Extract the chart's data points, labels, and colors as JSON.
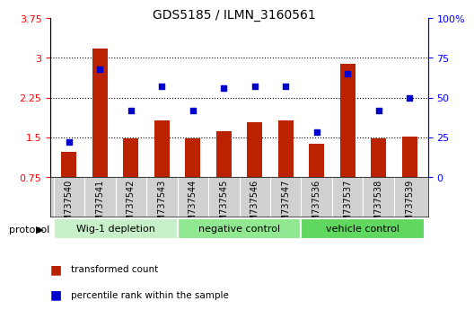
{
  "title": "GDS5185 / ILMN_3160561",
  "samples": [
    "GSM737540",
    "GSM737541",
    "GSM737542",
    "GSM737543",
    "GSM737544",
    "GSM737545",
    "GSM737546",
    "GSM737547",
    "GSM737536",
    "GSM737537",
    "GSM737538",
    "GSM737539"
  ],
  "bar_values": [
    1.22,
    3.18,
    1.48,
    1.82,
    1.48,
    1.61,
    1.78,
    1.82,
    1.38,
    2.88,
    1.48,
    1.52
  ],
  "dot_values": [
    22,
    68,
    42,
    57,
    42,
    56,
    57,
    57,
    28,
    65,
    42,
    50
  ],
  "bar_bottom": 0.75,
  "ylim_left": [
    0.75,
    3.75
  ],
  "ylim_right": [
    0,
    100
  ],
  "yticks_left": [
    0.75,
    1.5,
    2.25,
    3.0,
    3.75
  ],
  "yticks_right": [
    0,
    25,
    50,
    75,
    100
  ],
  "ytick_labels_left": [
    "0.75",
    "1.5",
    "2.25",
    "3",
    "3.75"
  ],
  "ytick_labels_right": [
    "0",
    "25",
    "50",
    "75",
    "100%"
  ],
  "groups": [
    {
      "label": "Wig-1 depletion",
      "start": 0,
      "end": 4,
      "color": "#c8f0c8"
    },
    {
      "label": "negative control",
      "start": 4,
      "end": 8,
      "color": "#90e890"
    },
    {
      "label": "vehicle control",
      "start": 8,
      "end": 12,
      "color": "#60d860"
    }
  ],
  "bar_color": "#bb2200",
  "dot_color": "#0000cc",
  "bar_width": 0.5,
  "grid_color": "#000000",
  "xlabel_color": "#555555",
  "protocol_label": "protocol",
  "legend_items": [
    {
      "color": "#bb2200",
      "label": "transformed count"
    },
    {
      "color": "#0000cc",
      "label": "percentile rank within the sample"
    }
  ]
}
